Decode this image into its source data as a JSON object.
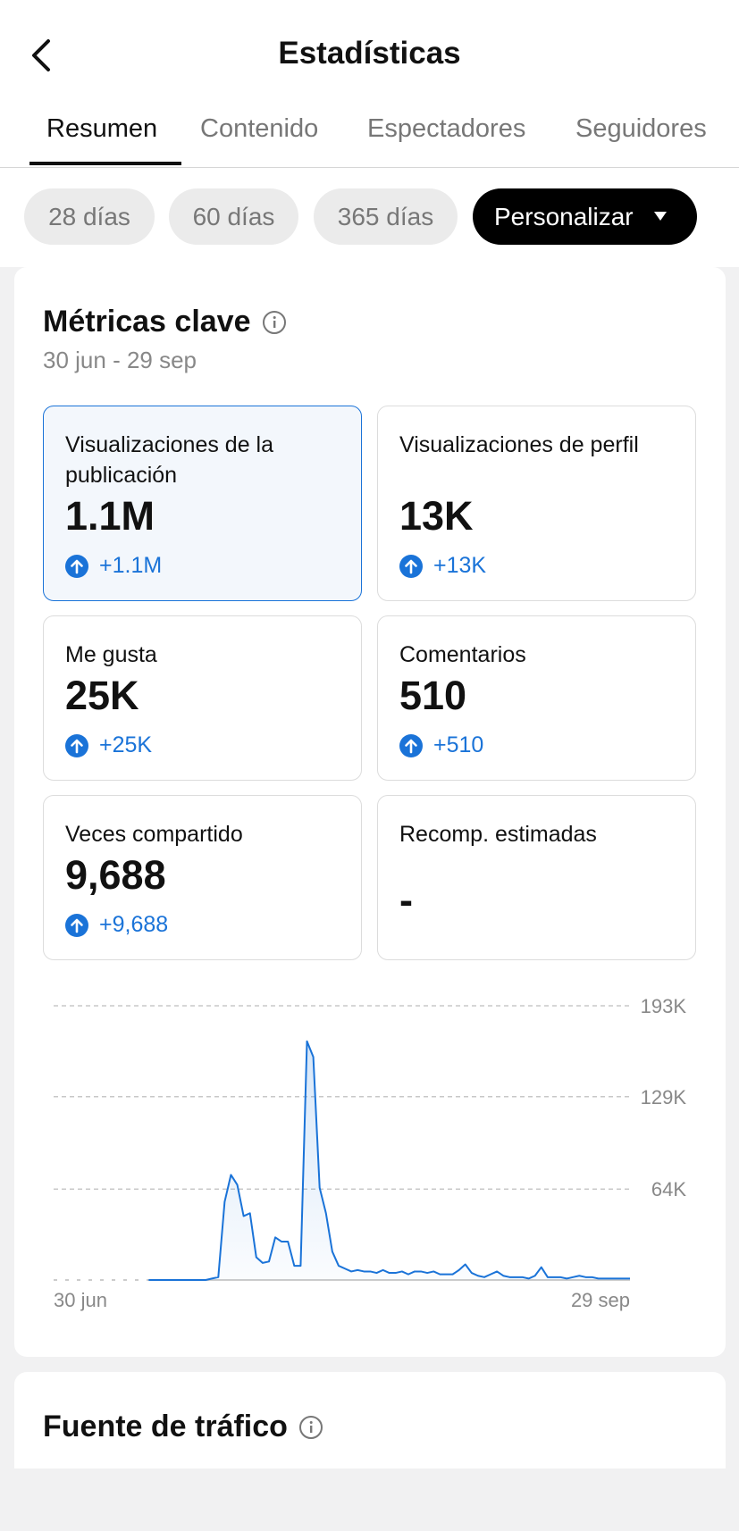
{
  "header": {
    "title": "Estadísticas"
  },
  "tabs": [
    "Resumen",
    "Contenido",
    "Espectadores",
    "Seguidores"
  ],
  "filters": [
    "28 días",
    "60 días",
    "365 días",
    "Personalizar"
  ],
  "key_metrics": {
    "title": "Métricas clave",
    "date_range": "30 jun - 29 sep",
    "cards": [
      {
        "label": "Visualizaciones de la publicación",
        "value": "1.1M",
        "delta": "+1.1M"
      },
      {
        "label": "Visualizaciones de perfil",
        "value": "13K",
        "delta": "+13K"
      },
      {
        "label": "Me gusta",
        "value": "25K",
        "delta": "+25K"
      },
      {
        "label": "Comentarios",
        "value": "510",
        "delta": "+510"
      },
      {
        "label": "Veces compartido",
        "value": "9,688",
        "delta": "+9,688"
      },
      {
        "label": "Recomp. estimadas",
        "value": "-"
      }
    ],
    "chart": {
      "type": "line",
      "color": "#1a73d8",
      "grid": true,
      "ylim": [
        0,
        193000
      ],
      "yticks": [
        {
          "value": 64000,
          "label": "64K"
        },
        {
          "value": 129000,
          "label": "129K"
        },
        {
          "value": 193000,
          "label": "193K"
        }
      ],
      "categories": [
        "30 jun",
        null,
        null,
        null,
        null,
        null,
        null,
        null,
        null,
        null,
        null,
        null,
        null,
        null,
        null,
        null,
        null,
        null,
        null,
        null,
        null,
        null,
        null,
        null,
        null,
        null,
        null,
        null,
        null,
        null,
        null,
        null,
        null,
        null,
        null,
        null,
        null,
        null,
        null,
        null,
        null,
        null,
        null,
        null,
        null,
        null,
        null,
        null,
        null,
        null,
        null,
        null,
        null,
        null,
        null,
        null,
        null,
        null,
        null,
        null,
        null,
        null,
        null,
        null,
        null,
        null,
        null,
        null,
        null,
        null,
        null,
        null,
        null,
        null,
        null,
        null,
        null,
        null,
        null,
        null,
        null,
        null,
        null,
        null,
        null,
        null,
        null,
        null,
        null,
        null,
        null,
        "29 sep"
      ],
      "values": [
        null,
        null,
        null,
        null,
        null,
        null,
        null,
        null,
        null,
        null,
        null,
        null,
        null,
        null,
        null,
        0,
        0,
        0,
        0,
        0,
        0,
        0,
        0,
        0,
        0,
        1000,
        2000,
        55000,
        74000,
        67000,
        45000,
        47000,
        16000,
        12000,
        13000,
        30000,
        27000,
        27000,
        10000,
        10000,
        168000,
        157000,
        65000,
        47000,
        20000,
        10000,
        8000,
        6000,
        7000,
        6000,
        6000,
        5000,
        7000,
        5000,
        5000,
        6000,
        4000,
        6000,
        6000,
        5000,
        6000,
        4000,
        4000,
        4000,
        7000,
        11000,
        5000,
        3000,
        2000,
        4000,
        6000,
        3000,
        2000,
        2000,
        2000,
        1000,
        3000,
        9000,
        2000,
        2000,
        2000,
        1000,
        2000,
        3000,
        2000,
        2000,
        1000,
        1000,
        1000,
        1000,
        1000,
        1000
      ]
    }
  },
  "traffic_source": {
    "title": "Fuente de tráfico"
  }
}
